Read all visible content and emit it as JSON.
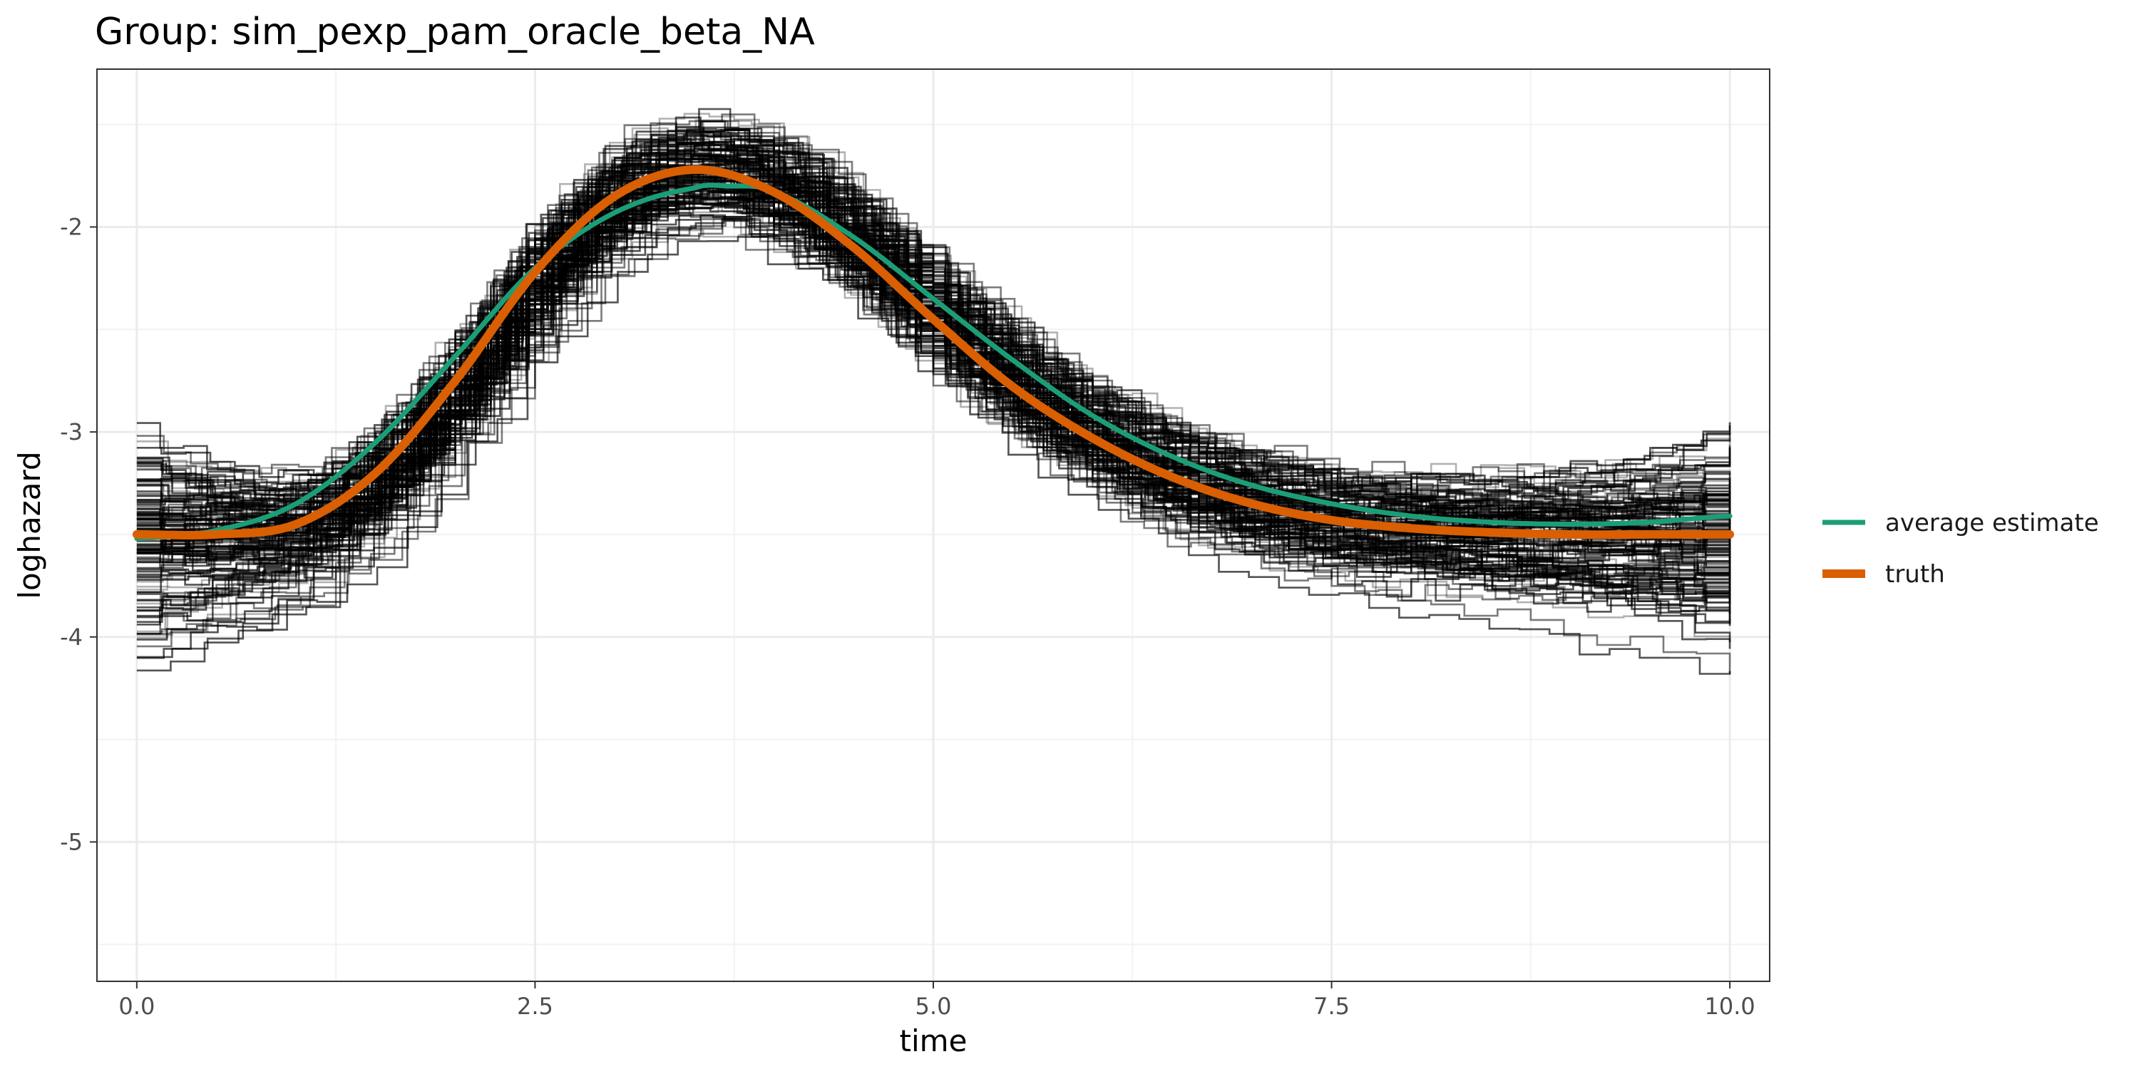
{
  "chart_data": {
    "type": "line",
    "title": "Group: sim_pexp_pam_oracle_beta_NA",
    "xlabel": "time",
    "ylabel": "loghazard",
    "xlim": [
      -0.25,
      10.25
    ],
    "ylim": [
      -5.68,
      -1.23
    ],
    "x_ticks": [
      0.0,
      2.5,
      5.0,
      7.5,
      10.0
    ],
    "x_tick_labels": [
      "0.0",
      "2.5",
      "5.0",
      "7.5",
      "10.0"
    ],
    "y_ticks": [
      -2,
      -3,
      -4,
      -5
    ],
    "y_tick_labels": [
      "-2",
      "-3",
      "-4",
      "-5"
    ],
    "grid": true,
    "legend_position": "right",
    "background_note": "many semi-transparent black step curves (individual simulation estimates)",
    "series": [
      {
        "name": "average estimate",
        "color": "#1b9e77",
        "x": [
          0.0,
          0.5,
          1.0,
          1.5,
          2.0,
          2.5,
          3.0,
          3.5,
          3.7,
          4.0,
          4.5,
          5.0,
          5.5,
          6.0,
          6.5,
          7.0,
          7.5,
          8.0,
          8.5,
          9.0,
          9.5,
          10.0
        ],
        "y": [
          -3.52,
          -3.48,
          -3.35,
          -3.05,
          -2.63,
          -2.2,
          -1.93,
          -1.81,
          -1.8,
          -1.83,
          -2.05,
          -2.35,
          -2.65,
          -2.92,
          -3.12,
          -3.26,
          -3.35,
          -3.41,
          -3.44,
          -3.45,
          -3.44,
          -3.41
        ]
      },
      {
        "name": "truth",
        "color": "#d95f02",
        "x": [
          0.0,
          0.5,
          1.0,
          1.5,
          2.0,
          2.5,
          3.0,
          3.5,
          4.0,
          4.5,
          5.0,
          5.5,
          6.0,
          6.5,
          7.0,
          7.5,
          8.0,
          8.5,
          9.0,
          9.5,
          10.0
        ],
        "y": [
          -3.5,
          -3.5,
          -3.45,
          -3.2,
          -2.75,
          -2.22,
          -1.85,
          -1.72,
          -1.83,
          -2.1,
          -2.45,
          -2.78,
          -3.03,
          -3.22,
          -3.35,
          -3.43,
          -3.47,
          -3.49,
          -3.5,
          -3.5,
          -3.5
        ]
      }
    ]
  }
}
